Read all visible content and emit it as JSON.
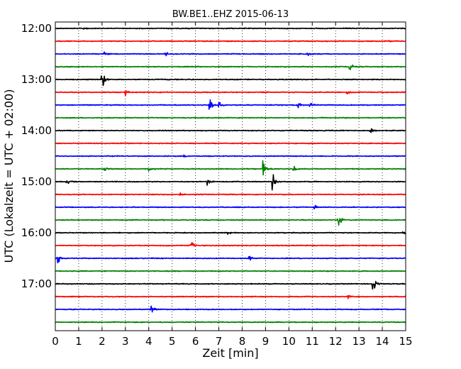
{
  "chart_data": {
    "type": "line",
    "subtype": "seismogram-dayplot",
    "title": "BW.BE1..EHZ 2015-06-13",
    "xlabel": "Zeit  [min]",
    "ylabel": "UTC (Lokalzeit = UTC + 02:00)",
    "xlim": [
      0,
      15
    ],
    "x_ticks": [
      0,
      1,
      2,
      3,
      4,
      5,
      6,
      7,
      8,
      9,
      10,
      11,
      12,
      13,
      14,
      15
    ],
    "x_tick_labels": [
      "0",
      "1",
      "2",
      "3",
      "4",
      "5",
      "6",
      "7",
      "8",
      "9",
      "10",
      "11",
      "12",
      "13",
      "14",
      "15"
    ],
    "y_tick_labels": [
      "12:00",
      "13:00",
      "14:00",
      "15:00",
      "16:00",
      "17:00"
    ],
    "y_tick_row_index": [
      0,
      4,
      8,
      12,
      16,
      20
    ],
    "grid": {
      "x": "dotted-vertical",
      "y": "none"
    },
    "colors": [
      "#000000",
      "#ff0000",
      "#0000ff",
      "#008000"
    ],
    "trace_interval_min": 15,
    "series": [
      {
        "start": "12:00",
        "color": "#000000",
        "events": [
          {
            "x": 1.2,
            "amp": 0.25
          }
        ]
      },
      {
        "start": "12:15",
        "color": "#ff0000",
        "events": [
          {
            "x": 14.3,
            "amp": 0.12
          }
        ]
      },
      {
        "start": "12:30",
        "color": "#0000ff",
        "events": [
          {
            "x": 2.1,
            "amp": 0.25
          },
          {
            "x": 4.7,
            "amp": 0.35
          },
          {
            "x": 10.8,
            "amp": 0.3
          }
        ]
      },
      {
        "start": "12:45",
        "color": "#008000",
        "events": [
          {
            "x": 12.6,
            "amp": 0.8
          }
        ]
      },
      {
        "start": "13:00",
        "color": "#000000",
        "events": [
          {
            "x": 2.0,
            "amp": 1.6
          }
        ]
      },
      {
        "start": "13:15",
        "color": "#ff0000",
        "events": [
          {
            "x": 3.0,
            "amp": 0.5
          },
          {
            "x": 12.5,
            "amp": 0.4
          }
        ]
      },
      {
        "start": "13:30",
        "color": "#0000ff",
        "events": [
          {
            "x": 6.6,
            "amp": 1.9
          },
          {
            "x": 7.0,
            "amp": 0.5
          },
          {
            "x": 10.4,
            "amp": 0.7
          },
          {
            "x": 10.9,
            "amp": 0.35
          }
        ]
      },
      {
        "start": "13:45",
        "color": "#008000",
        "events": []
      },
      {
        "start": "14:00",
        "color": "#000000",
        "events": [
          {
            "x": 13.5,
            "amp": 0.4
          }
        ]
      },
      {
        "start": "14:15",
        "color": "#ff0000",
        "events": []
      },
      {
        "start": "14:30",
        "color": "#0000ff",
        "events": [
          {
            "x": 5.5,
            "amp": 0.3
          },
          {
            "x": 15.0,
            "amp": 0.3
          }
        ]
      },
      {
        "start": "14:45",
        "color": "#008000",
        "events": [
          {
            "x": 2.1,
            "amp": 0.35
          },
          {
            "x": 4.0,
            "amp": 0.4
          },
          {
            "x": 8.9,
            "amp": 1.6
          },
          {
            "x": 10.2,
            "amp": 0.4
          }
        ]
      },
      {
        "start": "15:00",
        "color": "#000000",
        "events": [
          {
            "x": 0.5,
            "amp": 0.4
          },
          {
            "x": 6.5,
            "amp": 0.5
          },
          {
            "x": 9.3,
            "amp": 1.7
          }
        ]
      },
      {
        "start": "15:15",
        "color": "#ff0000",
        "events": [
          {
            "x": 5.3,
            "amp": 0.3
          }
        ]
      },
      {
        "start": "15:30",
        "color": "#0000ff",
        "events": [
          {
            "x": 11.1,
            "amp": 0.25
          }
        ]
      },
      {
        "start": "15:45",
        "color": "#008000",
        "events": [
          {
            "x": 12.1,
            "amp": 1.4
          }
        ]
      },
      {
        "start": "16:00",
        "color": "#000000",
        "events": [
          {
            "x": 7.4,
            "amp": 0.3
          },
          {
            "x": 14.9,
            "amp": 0.35
          }
        ]
      },
      {
        "start": "16:15",
        "color": "#ff0000",
        "events": [
          {
            "x": 5.8,
            "amp": 0.7
          }
        ]
      },
      {
        "start": "16:30",
        "color": "#0000ff",
        "events": [
          {
            "x": 0.1,
            "amp": 0.9
          },
          {
            "x": 8.3,
            "amp": 0.5
          }
        ]
      },
      {
        "start": "16:45",
        "color": "#008000",
        "events": []
      },
      {
        "start": "17:00",
        "color": "#000000",
        "events": [
          {
            "x": 13.6,
            "amp": 1.6
          }
        ]
      },
      {
        "start": "17:15",
        "color": "#ff0000",
        "events": [
          {
            "x": 12.5,
            "amp": 0.3
          }
        ]
      },
      {
        "start": "17:30",
        "color": "#0000ff",
        "events": [
          {
            "x": 4.1,
            "amp": 0.7
          }
        ]
      },
      {
        "start": "17:45",
        "color": "#008000",
        "events": []
      }
    ]
  }
}
